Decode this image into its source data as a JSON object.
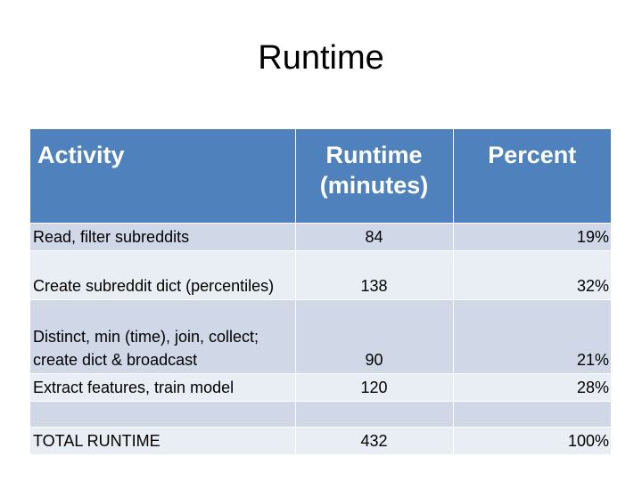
{
  "slide": {
    "title": "Runtime"
  },
  "table": {
    "headers": {
      "activity": "Activity",
      "runtime": "Runtime (minutes)",
      "percent": "Percent"
    },
    "rows": [
      {
        "activity": "Read, filter subreddits",
        "runtime": "84",
        "percent": "19%"
      },
      {
        "activity": "Create subreddit dict (percentiles)",
        "runtime": "138",
        "percent": "32%"
      },
      {
        "activity": "Distinct, min (time), join, collect; create dict & broadcast",
        "runtime": "90",
        "percent": "21%"
      },
      {
        "activity": "Extract features, train model",
        "runtime": "120",
        "percent": "28%"
      },
      {
        "activity": "",
        "runtime": "",
        "percent": ""
      },
      {
        "activity": "TOTAL RUNTIME",
        "runtime": "432",
        "percent": "100%"
      }
    ]
  },
  "colors": {
    "header_bg": "#4f81bd",
    "row_dark": "#d0d8e8",
    "row_light": "#e9edf4"
  }
}
